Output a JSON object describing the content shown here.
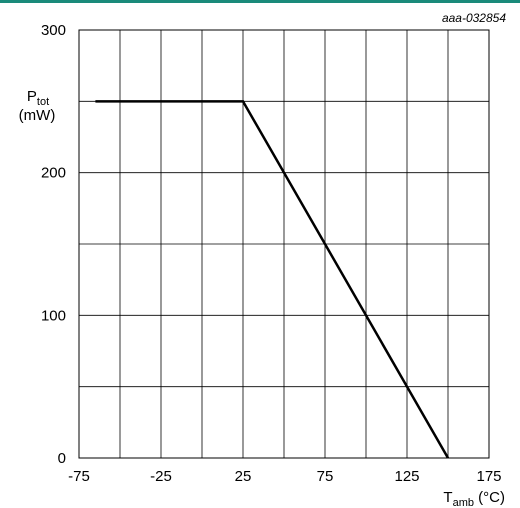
{
  "chart_data": {
    "type": "line",
    "figure_id": "aaa-032854",
    "y_label": {
      "main": "P",
      "sub": "tot",
      "unit": "(mW)"
    },
    "x_label": {
      "main": "T",
      "sub": "amb",
      "unit": " (°C)"
    },
    "xlim": [
      -75,
      175
    ],
    "ylim": [
      0,
      300
    ],
    "x_ticks": [
      -75,
      -25,
      25,
      75,
      125,
      175
    ],
    "x_grid_step": 25,
    "y_ticks": [
      0,
      100,
      200,
      300
    ],
    "y_grid_step": 50,
    "grid": true,
    "series": [
      {
        "x": [
          -65,
          25,
          150
        ],
        "y": [
          250,
          250,
          0
        ],
        "color": "#000000"
      }
    ]
  }
}
